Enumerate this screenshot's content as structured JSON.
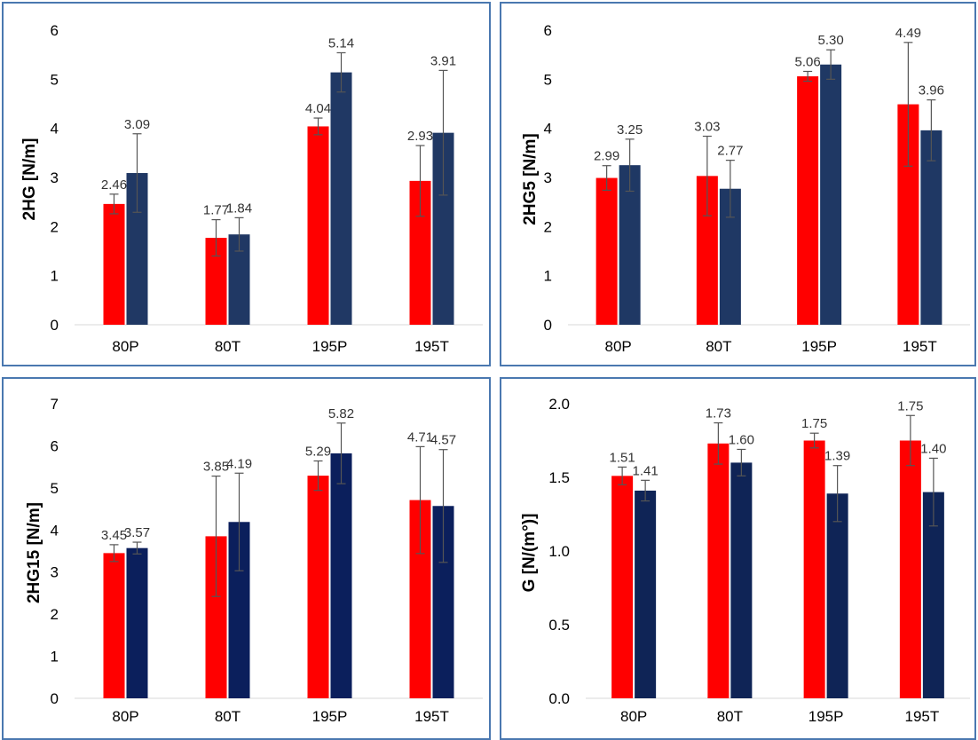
{
  "colors": {
    "series_a": "#ff0000",
    "series_b_panel_1": "#203864",
    "series_b_panel_2": "#1f3864",
    "series_b_panel_3": "#0b1f5c",
    "series_b_panel_4": "#0f2456",
    "error_bar": "#555555",
    "border": "#4a78b0"
  },
  "chart_data": [
    {
      "type": "bar",
      "categories": [
        "80P",
        "80T",
        "195P",
        "195T"
      ],
      "ylabel": "2HG [N/m]",
      "ylim": [
        0,
        6
      ],
      "yticks": [
        "0",
        "1",
        "2",
        "3",
        "4",
        "5",
        "6"
      ],
      "grid": false,
      "series": [
        {
          "values": [
            2.46,
            1.77,
            4.04,
            2.93
          ],
          "labels": [
            "2.46",
            "1.77",
            "4.04",
            "2.93"
          ],
          "error": [
            0.2,
            0.37,
            0.17,
            0.72
          ]
        },
        {
          "values": [
            3.09,
            1.84,
            5.14,
            3.91
          ],
          "labels": [
            "3.09",
            "1.84",
            "5.14",
            "3.91"
          ],
          "error": [
            0.8,
            0.34,
            0.4,
            1.27
          ]
        }
      ]
    },
    {
      "type": "bar",
      "categories": [
        "80P",
        "80T",
        "195P",
        "195T"
      ],
      "ylabel": "2HG5 [N/m]",
      "ylim": [
        0,
        6
      ],
      "yticks": [
        "0",
        "1",
        "2",
        "3",
        "4",
        "5",
        "6"
      ],
      "grid": false,
      "series": [
        {
          "values": [
            2.99,
            3.03,
            5.06,
            4.49
          ],
          "labels": [
            "2.99",
            "3.03",
            "5.06",
            "4.49"
          ],
          "error": [
            0.25,
            0.81,
            0.1,
            1.26
          ]
        },
        {
          "values": [
            3.25,
            2.77,
            5.3,
            3.96
          ],
          "labels": [
            "3.25",
            "2.77",
            "5.30",
            "3.96"
          ],
          "error": [
            0.53,
            0.58,
            0.3,
            0.62
          ]
        }
      ]
    },
    {
      "type": "bar",
      "categories": [
        "80P",
        "80T",
        "195P",
        "195T"
      ],
      "ylabel": "2HG15 [N/m]",
      "ylim": [
        0,
        7
      ],
      "yticks": [
        "0",
        "1",
        "2",
        "3",
        "4",
        "5",
        "6",
        "7"
      ],
      "grid": false,
      "series": [
        {
          "values": [
            3.45,
            3.85,
            5.29,
            4.71
          ],
          "labels": [
            "3.45",
            "3.85",
            "5.29",
            "4.71"
          ],
          "error": [
            0.2,
            1.43,
            0.35,
            1.27
          ]
        },
        {
          "values": [
            3.57,
            4.19,
            5.82,
            4.57
          ],
          "labels": [
            "3.57",
            "4.19",
            "5.82",
            "4.57"
          ],
          "error": [
            0.14,
            1.16,
            0.72,
            1.34
          ]
        }
      ]
    },
    {
      "type": "bar",
      "categories": [
        "80P",
        "80T",
        "195P",
        "195T"
      ],
      "ylabel": "G [N/(m°)]",
      "ylim": [
        0,
        2
      ],
      "yticks": [
        "0.0",
        "0.5",
        "1.0",
        "1.5",
        "2.0"
      ],
      "grid": false,
      "series": [
        {
          "values": [
            1.51,
            1.73,
            1.75,
            1.75
          ],
          "labels": [
            "1.51",
            "1.73",
            "1.75",
            "1.75"
          ],
          "error": [
            0.06,
            0.14,
            0.05,
            0.17
          ]
        },
        {
          "values": [
            1.41,
            1.6,
            1.39,
            1.4
          ],
          "labels": [
            "1.41",
            "1.60",
            "1.39",
            "1.40"
          ],
          "error": [
            0.07,
            0.09,
            0.19,
            0.23
          ]
        }
      ]
    }
  ]
}
